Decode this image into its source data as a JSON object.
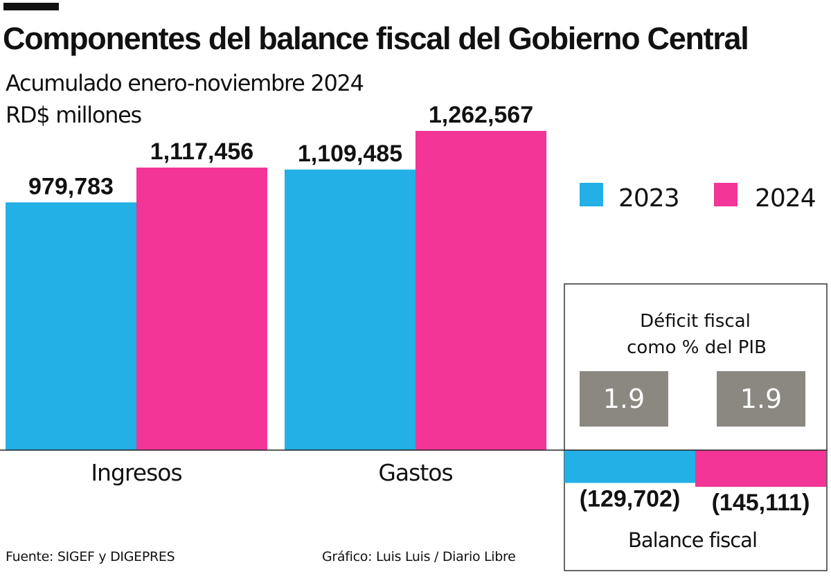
{
  "header": {
    "title": "Componentes del balance fiscal del Gobierno Central",
    "subtitle": "Acumulado enero-noviembre 2024",
    "unit": "RD$ millones"
  },
  "footer": {
    "source": "Fuente: SIGEF y DIGEPRES",
    "credit": "Gráfico: Luis Luis / Diario Libre"
  },
  "colors": {
    "series_2023": "#22b0e6",
    "series_2024": "#f23596",
    "pib_box": "#8b8781",
    "panel_border": "#333333",
    "text": "#111111"
  },
  "chart_data": {
    "type": "bar",
    "title": "Componentes del balance fiscal del Gobierno Central",
    "subtitle": "Acumulado enero-noviembre 2024",
    "ylabel": "RD$ millones",
    "ylim": [
      -150000,
      1400000
    ],
    "legend_position": "right",
    "categories": [
      "Ingresos",
      "Gastos"
    ],
    "series": [
      {
        "name": "2023",
        "values": [
          979783,
          1109485
        ],
        "labels": [
          "979,783",
          "1,109,485"
        ]
      },
      {
        "name": "2024",
        "values": [
          1117456,
          1262567
        ],
        "labels": [
          "1,117,456",
          "1,262,567"
        ]
      }
    ],
    "balance": {
      "category": "Balance fiscal",
      "values": [
        -129702,
        -145111
      ],
      "labels": [
        "(129,702)",
        "(145,111)"
      ]
    },
    "deficit_pib": {
      "title_line1": "Déficit fiscal",
      "title_line2": "como % del PIB",
      "values": [
        1.9,
        1.9
      ],
      "labels": [
        "1.9",
        "1.9"
      ]
    }
  }
}
